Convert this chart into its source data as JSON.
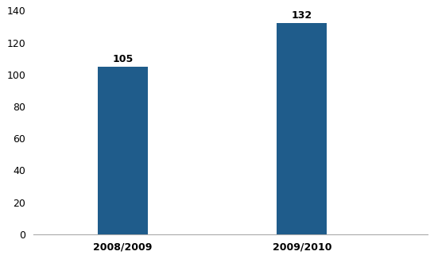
{
  "categories": [
    "2008/2009",
    "2009/2010"
  ],
  "values": [
    105,
    132
  ],
  "bar_color": "#1F5C8B",
  "ylim": [
    0,
    140
  ],
  "yticks": [
    0,
    20,
    40,
    60,
    80,
    100,
    120,
    140
  ],
  "label_fontsize": 9,
  "tick_fontsize": 9,
  "background_color": "#FFFFFF",
  "bar_width": 0.28,
  "label_fontweight": "bold",
  "x_positions": [
    1,
    2
  ],
  "xlim": [
    0.5,
    2.7
  ]
}
